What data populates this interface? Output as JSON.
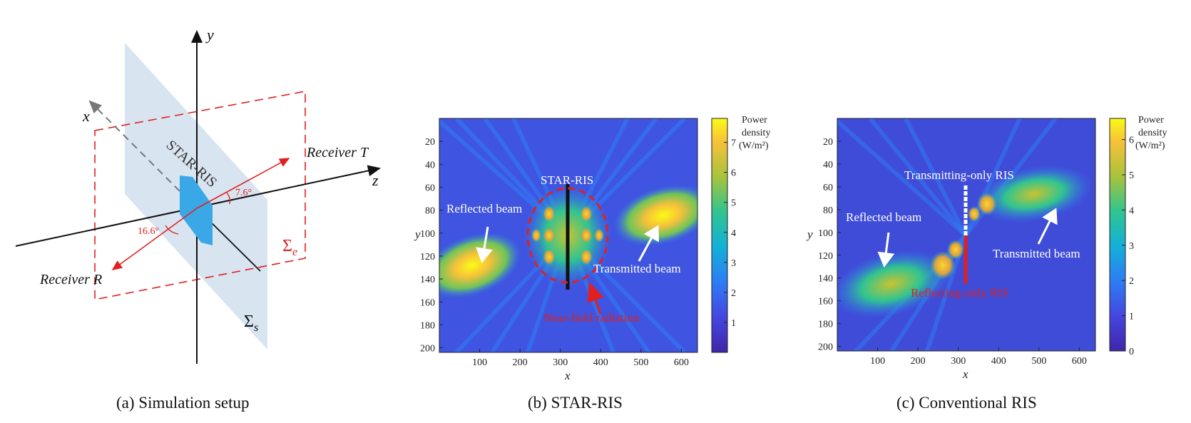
{
  "figure": {
    "panel_a": {
      "caption": "(a) Simulation setup",
      "axis_y": "y",
      "axis_x": "x",
      "axis_z": "z",
      "star_ris_label": "STAR-RIS",
      "receiver_t": "Receiver T",
      "receiver_r": "Receiver R",
      "angle_t": "7.6°",
      "angle_r": "16.6°",
      "sigma_e": "Σ",
      "sigma_e_sub": "e",
      "sigma_s": "Σ",
      "sigma_s_sub": "s"
    },
    "panel_b": {
      "caption": "(b) STAR-RIS",
      "ris_label": "STAR-RIS",
      "reflected_label": "Reflected beam",
      "transmitted_label": "Transmitted beam",
      "nearfield_label": "Near-field radiation",
      "colorbar_title_1": "Power",
      "colorbar_title_2": "density",
      "colorbar_title_3": "(W/m²)",
      "colorbar_ticks": [
        "1",
        "2",
        "3",
        "4",
        "5",
        "6",
        "7"
      ],
      "xlabel": "x",
      "ylabel": "y",
      "xticks": [
        "100",
        "200",
        "300",
        "400",
        "500",
        "600"
      ],
      "yticks": [
        "20",
        "40",
        "60",
        "80",
        "100",
        "120",
        "140",
        "160",
        "180",
        "200"
      ]
    },
    "panel_c": {
      "caption": "(c) Conventional RIS",
      "t_only_label": "Transmitting-only  RIS",
      "r_only_label": "Reflecting-only  RIS",
      "reflected_label": "Reflected beam",
      "transmitted_label": "Transmitted beam",
      "colorbar_title_1": "Power",
      "colorbar_title_2": "density",
      "colorbar_title_3": "(W/m²)",
      "colorbar_ticks": [
        "0",
        "1",
        "2",
        "3",
        "4",
        "5",
        "6"
      ],
      "xlabel": "x",
      "ylabel": "y",
      "xticks": [
        "100",
        "200",
        "300",
        "400",
        "500",
        "600"
      ],
      "yticks": [
        "20",
        "40",
        "60",
        "80",
        "100",
        "120",
        "140",
        "160",
        "180",
        "200"
      ]
    }
  }
}
